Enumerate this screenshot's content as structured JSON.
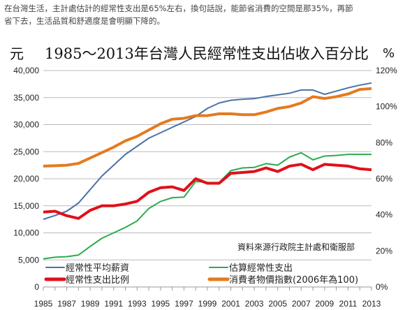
{
  "intro": {
    "line1": "在台灣生活，主計處估計的經常性支出是65%左右，換句話說，能節省消費的空間是那35%，再節",
    "line2": "省下去，生活品質和舒適度是會明顯下降的。"
  },
  "chart_data": {
    "type": "line",
    "title": "1985～2013年台灣人民經常性支出佔收入百分比",
    "ylabel": "元",
    "y2label": "%",
    "source_note": "資料來源行政院主計處和衛服部",
    "ylim": [
      0,
      40000
    ],
    "y2lim": [
      0,
      120
    ],
    "yticks": [
      "0",
      "5,000",
      "10,000",
      "15,000",
      "20,000",
      "25,000",
      "30,000",
      "35,000",
      "40,000"
    ],
    "y2ticks": [
      "0%",
      "20%",
      "40%",
      "60%",
      "80%",
      "100%",
      "120%"
    ],
    "xticks": [
      "1985",
      "1987",
      "1989",
      "1991",
      "1993",
      "1995",
      "1997",
      "1999",
      "2001",
      "2003",
      "2005",
      "2007",
      "2009",
      "2011",
      "2013"
    ],
    "x": [
      1985,
      1986,
      1987,
      1988,
      1989,
      1990,
      1991,
      1992,
      1993,
      1994,
      1995,
      1996,
      1997,
      1998,
      1999,
      2000,
      2001,
      2002,
      2003,
      2004,
      2005,
      2006,
      2007,
      2008,
      2009,
      2010,
      2011,
      2012,
      2013
    ],
    "grid": "horizontal",
    "series": [
      {
        "name": "經常性平均薪資",
        "axis": "left",
        "color": "#4a72a8",
        "width": 2,
        "values": [
          12500,
          13200,
          14000,
          15500,
          18000,
          20500,
          22500,
          24500,
          26000,
          27500,
          28500,
          29500,
          30500,
          31500,
          33000,
          34000,
          34500,
          34700,
          34800,
          35200,
          35500,
          35800,
          36400,
          36400,
          35600,
          36200,
          36800,
          37300,
          37700
        ]
      },
      {
        "name": "估算經常性支出",
        "axis": "left",
        "color": "#2eaa4f",
        "width": 2,
        "values": [
          5200,
          5500,
          5600,
          5900,
          7500,
          9000,
          10000,
          11000,
          12200,
          14500,
          15800,
          16500,
          16600,
          19500,
          19300,
          19300,
          21500,
          22000,
          22100,
          22800,
          22500,
          24000,
          24800,
          23500,
          24200,
          24300,
          24500,
          24500,
          24500
        ]
      },
      {
        "name": "經常性支出比例",
        "axis": "right",
        "color": "#e0101a",
        "width": 4,
        "values": [
          41.5,
          42,
          39.5,
          38,
          42.5,
          45,
          45,
          46,
          47.5,
          52.5,
          55,
          55.5,
          53.5,
          60,
          57.5,
          57.5,
          63,
          63.5,
          64,
          66,
          64,
          67,
          68,
          65,
          68,
          67.5,
          67,
          65.5,
          65
        ]
      },
      {
        "name": "消費者物價指數(2006年為100)",
        "axis": "right",
        "color": "#e57a1e",
        "width": 4,
        "values": [
          67,
          67.2,
          67.5,
          68.5,
          71.5,
          74.5,
          77.5,
          81,
          83.5,
          87,
          90.5,
          93,
          93.5,
          95,
          95,
          96,
          96,
          95.5,
          95.5,
          97,
          99,
          100,
          102,
          105.5,
          104.5,
          105.5,
          107,
          109.5,
          110
        ]
      }
    ]
  }
}
